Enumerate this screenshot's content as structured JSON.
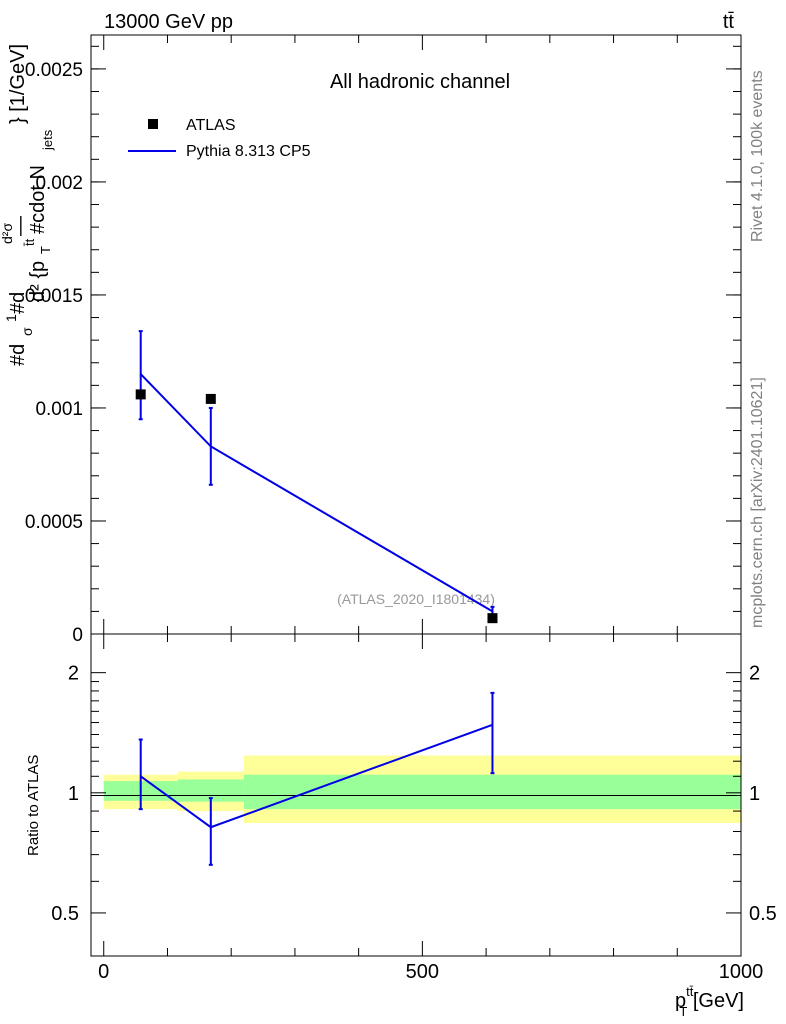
{
  "header": {
    "left": "13000 GeV pp",
    "right": "tt̄"
  },
  "side_labels": {
    "rivet": "Rivet 4.1.0,  100k events",
    "mcplots": "mcplots.cern.ch [arXiv:2401.10621]"
  },
  "annotations": {
    "channel": "All hadronic channel",
    "analysis_id": "(ATLAS_2020_I1801434)"
  },
  "legend": {
    "data_label": "ATLAS",
    "mc_label": "Pythia 8.313 CP5"
  },
  "axes": {
    "main_ylabel": "#dσ/#d... (mangled)",
    "main_ylabel_parts": [
      "#d",
      "1",
      "σ",
      "#d",
      "d²σ",
      "—",
      "d² {p",
      "T",
      "t̄t",
      " #cdot N",
      "jets",
      "} [1/GeV]"
    ],
    "ratio_ylabel": "Ratio to ATLAS",
    "xlabel_main": "p",
    "xlabel_sub": "T",
    "xlabel_sup": "tt̄",
    "xlabel_unit": " [GeV]"
  },
  "colors": {
    "data": "#000000",
    "mc": "#0000e6",
    "band_inner": "#99ff99",
    "band_outer": "#ffff99"
  },
  "chart_data": [
    {
      "type": "scatter",
      "panel": "main",
      "xlim": [
        -20,
        1000
      ],
      "ylim": [
        0,
        0.00265
      ],
      "yticks": [
        {
          "value": 0,
          "label": "0"
        },
        {
          "value": 0.0005,
          "label": "0.0005"
        },
        {
          "value": 0.001,
          "label": "0.001"
        },
        {
          "value": 0.0015,
          "label": "0.0015"
        },
        {
          "value": 0.002,
          "label": "0.002"
        },
        {
          "value": 0.0025,
          "label": "0.0025"
        }
      ],
      "series": [
        {
          "name": "ATLAS",
          "style": "markers",
          "x": [
            58,
            168,
            610
          ],
          "y": [
            0.00106,
            0.00104,
            7e-05
          ]
        },
        {
          "name": "Pythia 8.313 CP5",
          "style": "line",
          "x": [
            58,
            168,
            610
          ],
          "y": [
            0.00115,
            0.00083,
            0.0001
          ],
          "err_low": [
            0.00095,
            0.00066,
            8e-05
          ],
          "err_high": [
            0.00134,
            0.001,
            0.00012
          ]
        }
      ]
    },
    {
      "type": "line",
      "panel": "ratio",
      "xlim": [
        -20,
        1000
      ],
      "ylim": [
        0.39,
        2.5
      ],
      "log_y": true,
      "yticks": [
        {
          "value": 0.5,
          "label": "0.5"
        },
        {
          "value": 1,
          "label": "1"
        },
        {
          "value": 2,
          "label": "2"
        }
      ],
      "xticks": [
        {
          "value": 0,
          "label": "0"
        },
        {
          "value": 500,
          "label": "500"
        },
        {
          "value": 1000,
          "label": "1000"
        }
      ],
      "bands": [
        {
          "x0": 0,
          "x1": 116,
          "inner": [
            0.955,
            1.07
          ],
          "outer": [
            0.91,
            1.11
          ]
        },
        {
          "x0": 116,
          "x1": 220,
          "inner": [
            0.95,
            1.08
          ],
          "outer": [
            0.9,
            1.13
          ]
        },
        {
          "x0": 220,
          "x1": 1000,
          "inner": [
            0.91,
            1.11
          ],
          "outer": [
            0.84,
            1.24
          ]
        }
      ],
      "series": [
        {
          "name": "Pythia 8.313 CP5",
          "x": [
            58,
            168,
            610
          ],
          "y": [
            1.1,
            0.82,
            1.48
          ],
          "err_low": [
            0.91,
            0.66,
            1.12
          ],
          "err_high": [
            1.36,
            0.97,
            1.78
          ]
        }
      ]
    }
  ]
}
